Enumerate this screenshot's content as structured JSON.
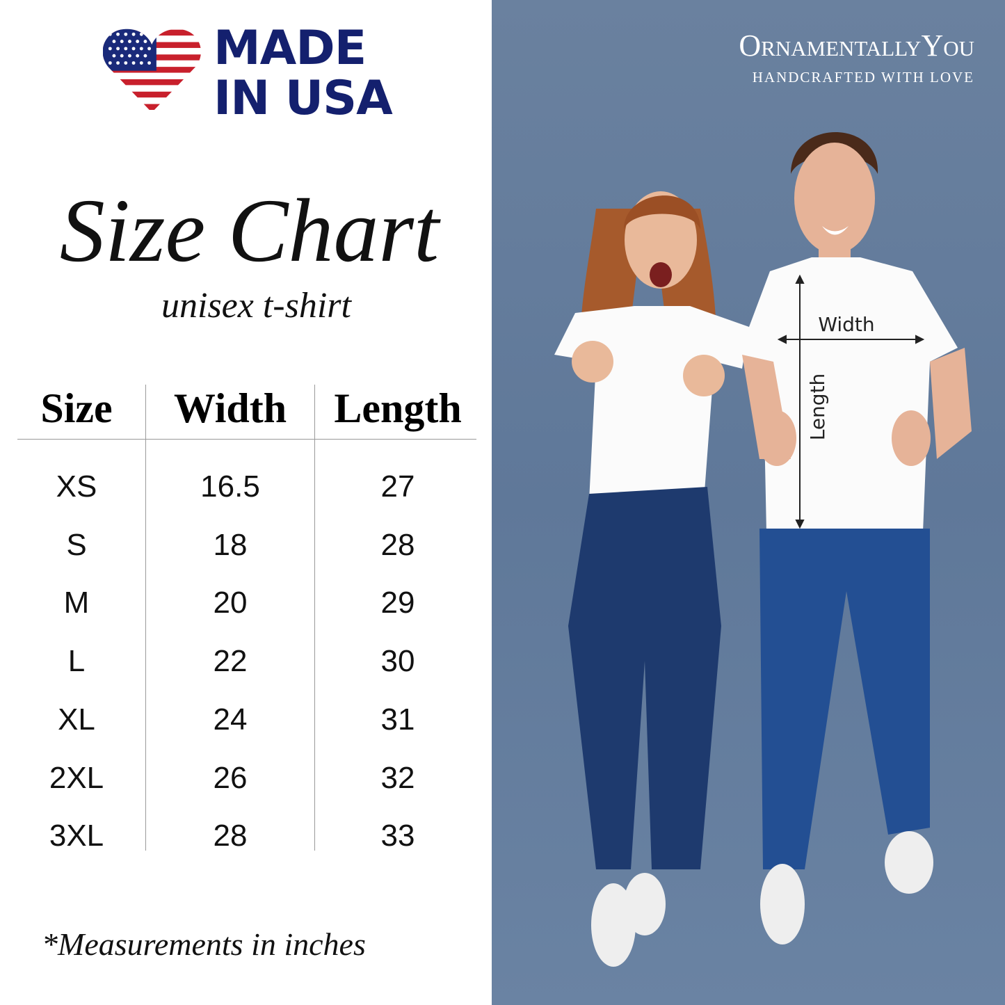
{
  "badge": {
    "line1": "MADE",
    "line2": "IN USA",
    "icon": "us-flag-heart-icon",
    "colors": {
      "navy": "#14206e",
      "red": "#c8202c"
    }
  },
  "title": "Size Chart",
  "subtitle": "unisex t-shirt",
  "table": {
    "headers": [
      "Size",
      "Width",
      "Length"
    ],
    "rows": [
      [
        "XS",
        "16.5",
        "27"
      ],
      [
        "S",
        "18",
        "28"
      ],
      [
        "M",
        "20",
        "29"
      ],
      [
        "L",
        "22",
        "30"
      ],
      [
        "XL",
        "24",
        "31"
      ],
      [
        "2XL",
        "26",
        "32"
      ],
      [
        "3XL",
        "28",
        "33"
      ]
    ]
  },
  "footnote": "*Measurements in inches",
  "brand": {
    "name": "OrnamentallyYou",
    "tagline": "HANDCRAFTED WITH LOVE"
  },
  "photo": {
    "width_label": "Width",
    "length_label": "Length",
    "background": "#647c9c"
  }
}
